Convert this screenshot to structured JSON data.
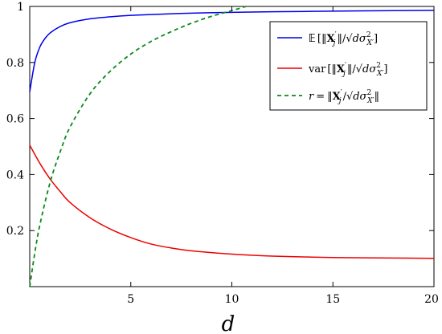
{
  "chart_data": {
    "type": "line",
    "title": "",
    "xlabel": "d",
    "ylabel": "",
    "xlim": [
      0,
      20
    ],
    "ylim": [
      0,
      1
    ],
    "x_ticks": [
      {
        "value": 5,
        "label": "5"
      },
      {
        "value": 10,
        "label": "10"
      },
      {
        "value": 15,
        "label": "15"
      },
      {
        "value": 20,
        "label": "20"
      }
    ],
    "y_ticks": [
      {
        "value": 0.2,
        "label": "0.2"
      },
      {
        "value": 0.4,
        "label": "0.4"
      },
      {
        "value": 0.6,
        "label": "0.6"
      },
      {
        "value": 0.8,
        "label": "0.8"
      },
      {
        "value": 1.0,
        "label": "1"
      }
    ],
    "grid": false,
    "legend_position": "top-right",
    "series": [
      {
        "name": "E[‖X′j‖/√(dσ²X′)]",
        "color": "#0000ee",
        "dash": "solid",
        "x": [
          0,
          0.25,
          0.5,
          0.75,
          1,
          1.5,
          2,
          3,
          4,
          5,
          6,
          8,
          10,
          12,
          15,
          18,
          20
        ],
        "y": [
          0.695,
          0.8,
          0.855,
          0.885,
          0.905,
          0.928,
          0.942,
          0.956,
          0.963,
          0.968,
          0.971,
          0.976,
          0.979,
          0.981,
          0.983,
          0.985,
          0.986
        ]
      },
      {
        "name": "var[‖X′j‖/√(dσ²X′)]",
        "color": "#ee0000",
        "dash": "solid",
        "x": [
          0,
          0.5,
          1,
          1.5,
          2,
          3,
          4,
          5,
          6,
          7,
          8,
          10,
          12,
          15,
          18,
          20
        ],
        "y": [
          0.505,
          0.44,
          0.385,
          0.34,
          0.3,
          0.245,
          0.205,
          0.175,
          0.152,
          0.138,
          0.128,
          0.116,
          0.109,
          0.104,
          0.102,
          0.101
        ]
      },
      {
        "name": "r = ‖X′j‖/√(dσ²X′)",
        "color": "#0a8a1a",
        "dash": "dashed",
        "x": [
          0,
          0.25,
          0.5,
          1,
          1.5,
          2,
          3,
          4,
          5,
          6,
          7,
          8,
          9,
          10,
          10.7
        ],
        "y": [
          0.0,
          0.12,
          0.22,
          0.37,
          0.48,
          0.57,
          0.69,
          0.77,
          0.83,
          0.875,
          0.91,
          0.94,
          0.965,
          0.985,
          1.0
        ]
      }
    ]
  }
}
